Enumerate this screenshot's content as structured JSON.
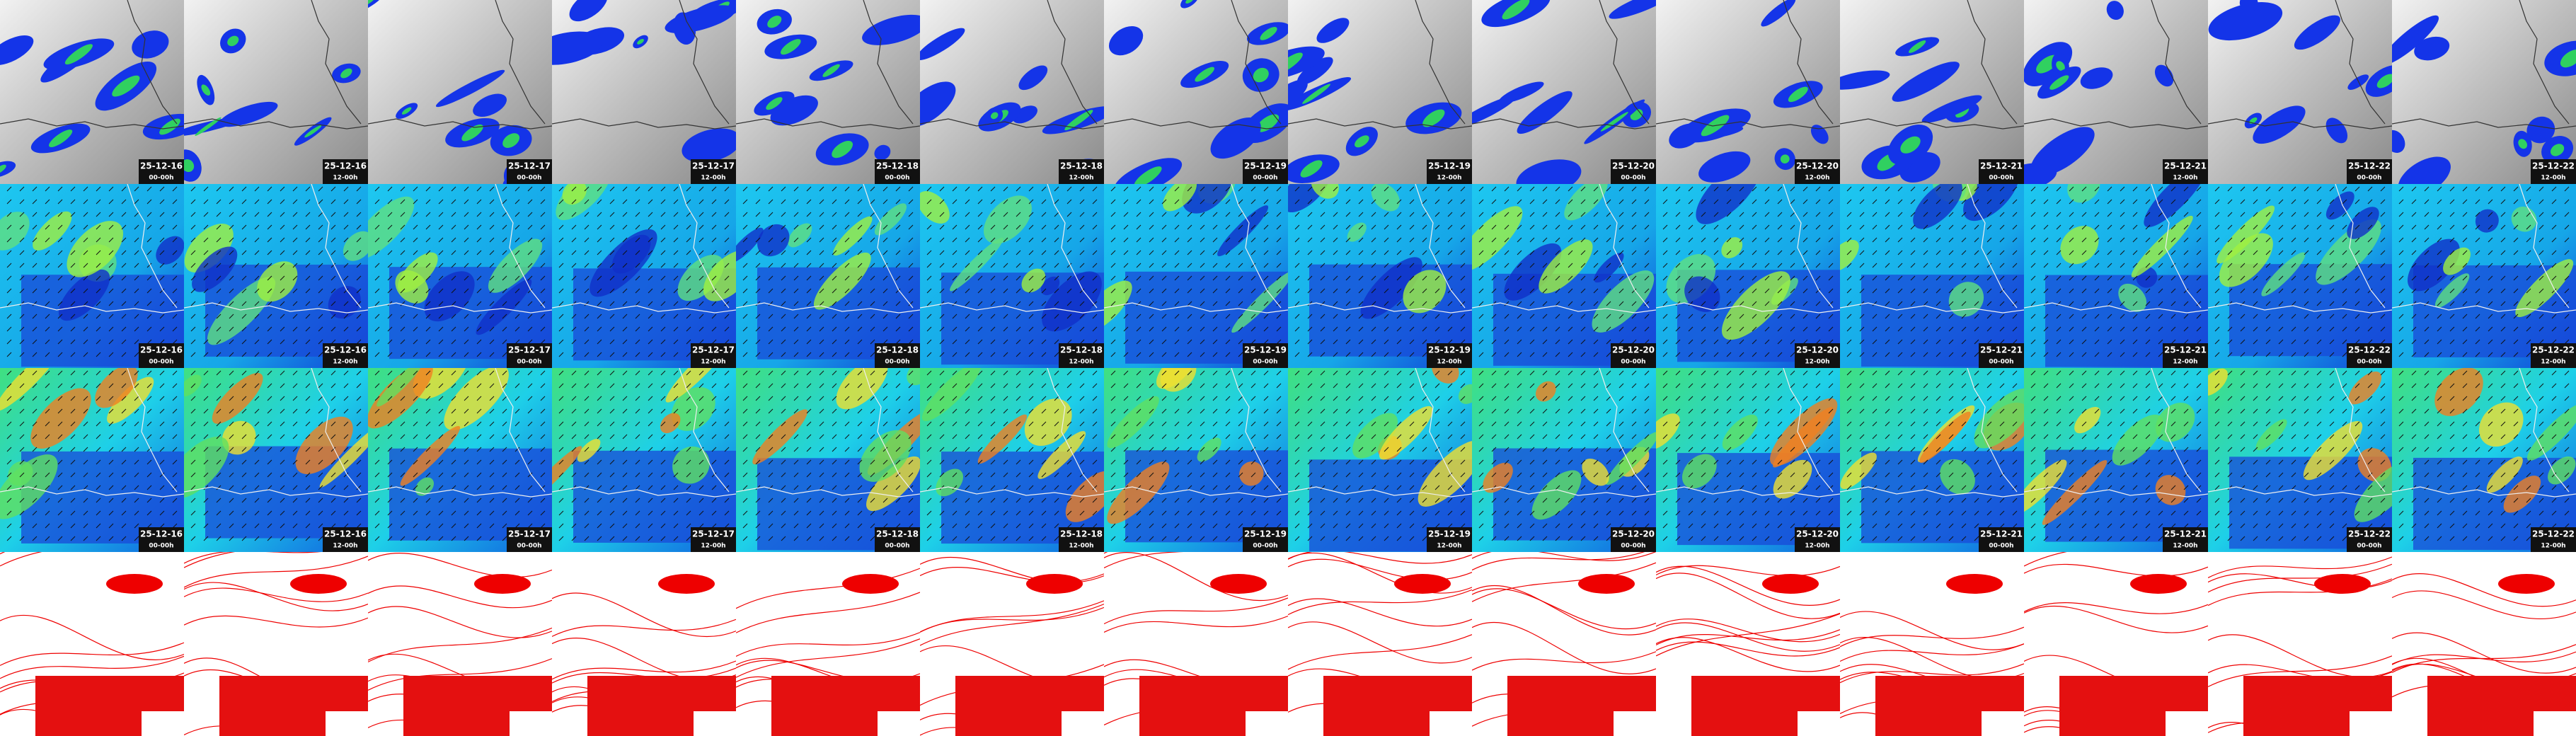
{
  "columns": [
    {
      "date": "25-12-16",
      "time": "00-00h"
    },
    {
      "date": "25-12-16",
      "time": "12-00h"
    },
    {
      "date": "25-12-17",
      "time": "00-00h"
    },
    {
      "date": "25-12-17",
      "time": "12-00h"
    },
    {
      "date": "25-12-18",
      "time": "00-00h"
    },
    {
      "date": "25-12-18",
      "time": "12-00h"
    },
    {
      "date": "25-12-19",
      "time": "00-00h"
    },
    {
      "date": "25-12-19",
      "time": "12-00h"
    },
    {
      "date": "25-12-20",
      "time": "00-00h"
    },
    {
      "date": "25-12-20",
      "time": "12-00h"
    },
    {
      "date": "25-12-21",
      "time": "00-00h"
    },
    {
      "date": "25-12-21",
      "time": "12-00h"
    },
    {
      "date": "25-12-22",
      "time": "00-00h"
    },
    {
      "date": "25-12-22",
      "time": "12-00h"
    }
  ]
}
